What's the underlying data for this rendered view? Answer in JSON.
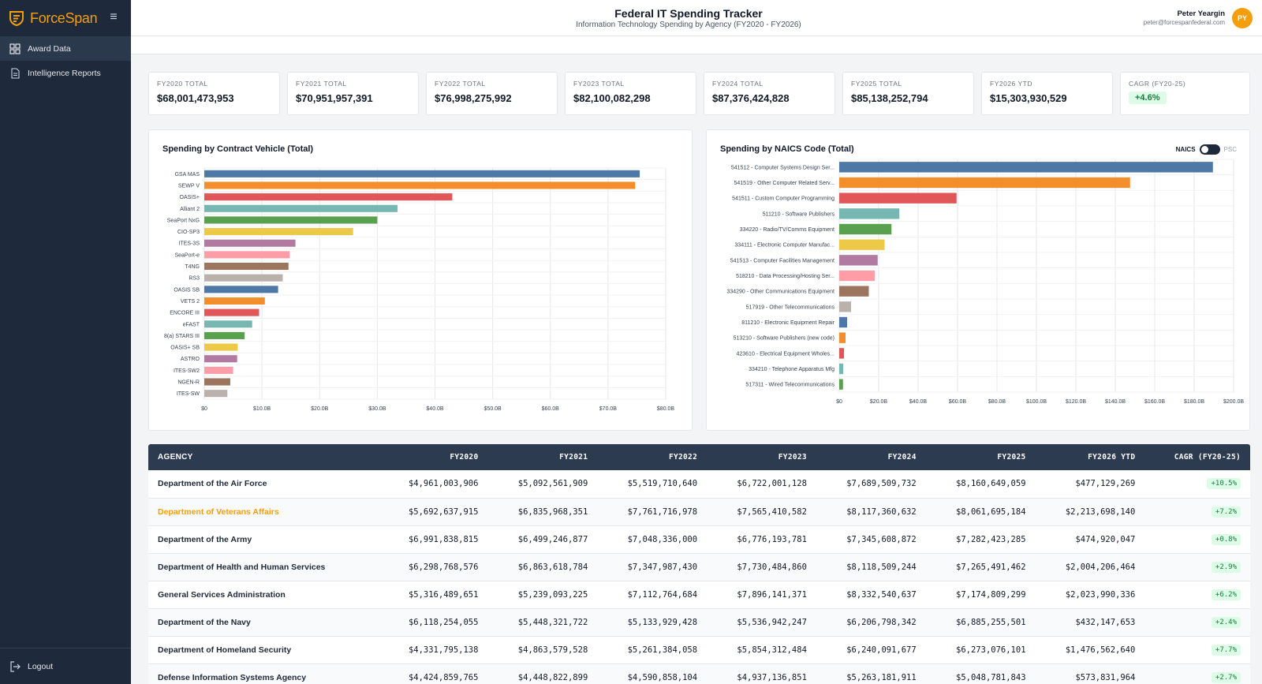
{
  "brand": {
    "name": "ForceSpan"
  },
  "sidebar": {
    "items": [
      {
        "label": "Award Data",
        "icon": "grid-icon"
      },
      {
        "label": "Intelligence Reports",
        "icon": "document-icon"
      }
    ],
    "logout": "Logout"
  },
  "header": {
    "title": "Federal IT Spending Tracker",
    "subtitle": "Information Technology Spending by Agency (FY2020 - FY2026)"
  },
  "user": {
    "name": "Peter Yeargin",
    "email": "peter@forcespanfederal.com",
    "initials": "PY"
  },
  "kpis": [
    {
      "label": "FY2020 TOTAL",
      "value": "$68,001,473,953"
    },
    {
      "label": "FY2021 TOTAL",
      "value": "$70,951,957,391"
    },
    {
      "label": "FY2022 TOTAL",
      "value": "$76,998,275,992"
    },
    {
      "label": "FY2023 TOTAL",
      "value": "$82,100,082,298"
    },
    {
      "label": "FY2024 TOTAL",
      "value": "$87,376,424,828"
    },
    {
      "label": "FY2025 TOTAL",
      "value": "$85,138,252,794"
    },
    {
      "label": "FY2026 YTD",
      "value": "$15,303,930,529"
    },
    {
      "label": "CAGR (FY20-25)",
      "value": "+4.6%"
    }
  ],
  "toggle": {
    "left": "NAICS",
    "right": "PSC"
  },
  "palette": [
    "#4e79a7",
    "#f28e2b",
    "#e15759",
    "#76b7b2",
    "#59a14f",
    "#edc948",
    "#b07aa1",
    "#ff9da7",
    "#9c755f",
    "#bab0ac"
  ],
  "chart_data": [
    {
      "type": "bar",
      "orientation": "horizontal",
      "title": "Spending by Contract Vehicle (Total)",
      "categories": [
        "GSA MAS",
        "SEWP V",
        "OASIS+",
        "Alliant 2",
        "SeaPort NxG",
        "CIO-SP3",
        "ITES-3S",
        "SeaPort-e",
        "T4NG",
        "RS3",
        "OASIS SB",
        "VETS 2",
        "ENCORE III",
        "eFAST",
        "8(a) STARS III",
        "OASIS+ SB",
        "ASTRO",
        "ITES-SW2",
        "NGEN-R",
        "ITES-SW"
      ],
      "values": [
        75.5,
        74.7,
        43.0,
        33.5,
        30.0,
        25.8,
        15.8,
        14.8,
        14.6,
        13.6,
        12.8,
        10.5,
        9.5,
        8.3,
        7.0,
        5.8,
        5.7,
        5.0,
        4.5,
        4.0
      ],
      "unit": "B",
      "xlim": [
        0,
        80
      ],
      "xticks": [
        0,
        10,
        20,
        30,
        40,
        50,
        60,
        70,
        80
      ],
      "xtick_labels": [
        "$0",
        "$10.0B",
        "$20.0B",
        "$30.0B",
        "$40.0B",
        "$50.0B",
        "$60.0B",
        "$70.0B",
        "$80.0B"
      ],
      "grid": true
    },
    {
      "type": "bar",
      "orientation": "horizontal",
      "title": "Spending by NAICS Code (Total)",
      "categories": [
        "541512 - Computer Systems Design Ser...",
        "541519 - Other Computer Related Serv...",
        "541511 - Custom Computer Programming",
        "511210 - Software Publishers",
        "334220 - Radio/TV/Comms Equipment",
        "334111 - Electronic Computer Manufac...",
        "541513 - Computer Facilities Management",
        "518210 - Data Processing/Hosting Ser...",
        "334290 - Other Communications Equipment",
        "517919 - Other Telecommunications",
        "811210 - Electronic Equipment Repair",
        "513210 - Software Publishers (new code)",
        "423610 - Electrical Equipment Wholes...",
        "334210 - Telephone Apparatus Mfg",
        "517311 - Wired Telecommunications"
      ],
      "values": [
        189.5,
        147.5,
        59.5,
        30.5,
        26.5,
        23.0,
        19.5,
        18.0,
        15.0,
        6.0,
        4.0,
        3.2,
        2.4,
        2.0,
        1.9
      ],
      "unit": "B",
      "xlim": [
        0,
        200
      ],
      "xticks": [
        0,
        20,
        40,
        60,
        80,
        100,
        120,
        140,
        160,
        180,
        200
      ],
      "xtick_labels": [
        "$0",
        "$20.0B",
        "$40.0B",
        "$60.0B",
        "$80.0B",
        "$100.0B",
        "$120.0B",
        "$140.0B",
        "$160.0B",
        "$180.0B",
        "$200.0B"
      ],
      "grid": true
    }
  ],
  "table": {
    "columns": [
      "AGENCY",
      "FY2020",
      "FY2021",
      "FY2022",
      "FY2023",
      "FY2024",
      "FY2025",
      "FY2026 YTD",
      "CAGR (FY20-25)"
    ],
    "rows": [
      {
        "agency": "Department of the Air Force",
        "values": [
          "$4,961,003,906",
          "$5,092,561,909",
          "$5,519,710,640",
          "$6,722,001,128",
          "$7,689,509,732",
          "$8,160,649,059",
          "$477,129,269"
        ],
        "cagr": "+10.5%",
        "highlight": false
      },
      {
        "agency": "Department of Veterans Affairs",
        "values": [
          "$5,692,637,915",
          "$6,835,968,351",
          "$7,761,716,978",
          "$7,565,410,582",
          "$8,117,360,632",
          "$8,061,695,184",
          "$2,213,698,140"
        ],
        "cagr": "+7.2%",
        "highlight": true
      },
      {
        "agency": "Department of the Army",
        "values": [
          "$6,991,838,815",
          "$6,499,246,877",
          "$7,048,336,000",
          "$6,776,193,781",
          "$7,345,608,872",
          "$7,282,423,285",
          "$474,920,047"
        ],
        "cagr": "+0.8%",
        "highlight": false
      },
      {
        "agency": "Department of Health and Human Services",
        "values": [
          "$6,298,768,576",
          "$6,863,618,784",
          "$7,347,987,430",
          "$7,730,484,860",
          "$8,118,509,244",
          "$7,265,491,462",
          "$2,004,206,464"
        ],
        "cagr": "+2.9%",
        "highlight": false
      },
      {
        "agency": "General Services Administration",
        "values": [
          "$5,316,489,651",
          "$5,239,093,225",
          "$7,112,764,684",
          "$7,896,141,371",
          "$8,332,540,637",
          "$7,174,809,299",
          "$2,023,990,336"
        ],
        "cagr": "+6.2%",
        "highlight": false
      },
      {
        "agency": "Department of the Navy",
        "values": [
          "$6,118,254,055",
          "$5,448,321,722",
          "$5,133,929,428",
          "$5,536,942,247",
          "$6,206,798,342",
          "$6,885,255,501",
          "$432,147,653"
        ],
        "cagr": "+2.4%",
        "highlight": false
      },
      {
        "agency": "Department of Homeland Security",
        "values": [
          "$4,331,795,138",
          "$4,863,579,528",
          "$5,261,384,058",
          "$5,854,312,484",
          "$6,240,091,677",
          "$6,273,076,101",
          "$1,476,562,640"
        ],
        "cagr": "+7.7%",
        "highlight": false
      },
      {
        "agency": "Defense Information Systems Agency",
        "values": [
          "$4,424,859,765",
          "$4,448,822,899",
          "$4,590,858,104",
          "$4,937,136,851",
          "$5,263,181,911",
          "$5,048,781,843",
          "$573,831,964"
        ],
        "cagr": "+2.7%",
        "highlight": false
      }
    ]
  }
}
